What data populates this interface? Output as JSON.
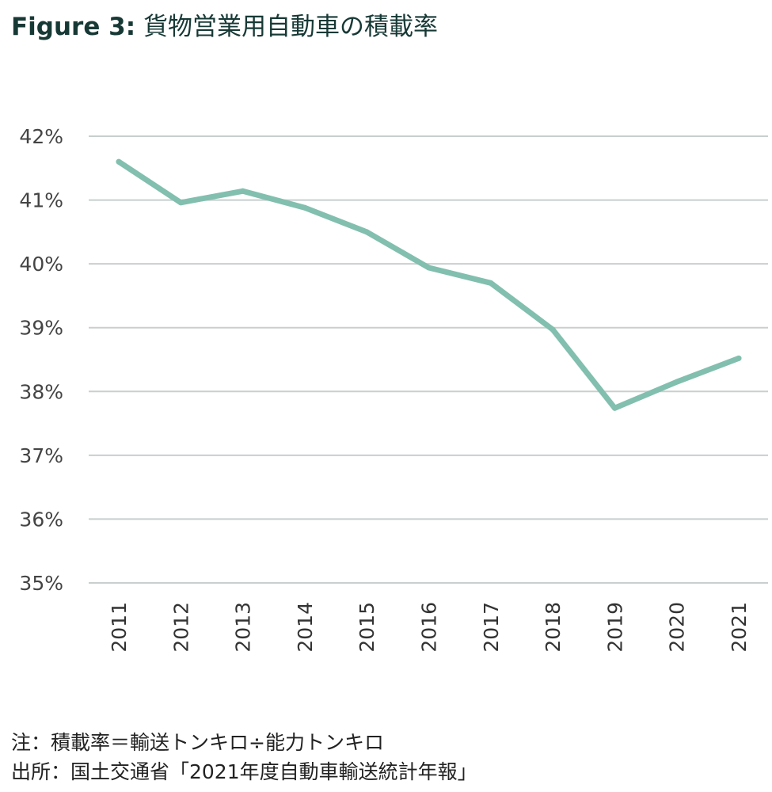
{
  "title_prefix": "Figure 3:",
  "title_main": "貨物営業用自動車の積載率",
  "notes": [
    "注：積載率＝輸送トンキロ÷能力トンキロ",
    "出所：国土交通省「2021年度自動車輸送統計年報」"
  ],
  "chart_data": {
    "type": "line",
    "title": "Figure 3: 貨物営業用自動車の積載率",
    "categories": [
      "2011",
      "2012",
      "2013",
      "2014",
      "2015",
      "2016",
      "2017",
      "2018",
      "2019",
      "2020",
      "2021"
    ],
    "values": [
      41.6,
      40.96,
      41.14,
      40.88,
      40.5,
      39.94,
      39.7,
      38.97,
      37.74,
      38.15,
      38.52
    ],
    "ylim": [
      35,
      42
    ],
    "yticks": [
      "35%",
      "36%",
      "37%",
      "38%",
      "39%",
      "40%",
      "41%",
      "42%"
    ],
    "grid": true,
    "line_color": "#82bfae",
    "grid_color": "#c8cfce"
  }
}
